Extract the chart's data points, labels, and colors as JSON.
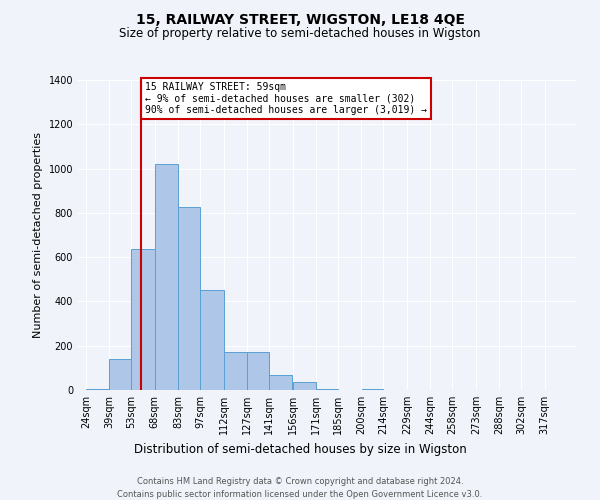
{
  "title": "15, RAILWAY STREET, WIGSTON, LE18 4QE",
  "subtitle": "Size of property relative to semi-detached houses in Wigston",
  "xlabel": "Distribution of semi-detached houses by size in Wigston",
  "ylabel": "Number of semi-detached properties",
  "bin_labels": [
    "24sqm",
    "39sqm",
    "53sqm",
    "68sqm",
    "83sqm",
    "97sqm",
    "112sqm",
    "127sqm",
    "141sqm",
    "156sqm",
    "171sqm",
    "185sqm",
    "200sqm",
    "214sqm",
    "229sqm",
    "244sqm",
    "258sqm",
    "273sqm",
    "288sqm",
    "302sqm",
    "317sqm"
  ],
  "bin_edges": [
    24,
    39,
    53,
    68,
    83,
    97,
    112,
    127,
    141,
    156,
    171,
    185,
    200,
    214,
    229,
    244,
    258,
    273,
    288,
    302,
    317,
    332
  ],
  "bar_values": [
    5,
    140,
    635,
    1020,
    825,
    450,
    170,
    170,
    70,
    35,
    5,
    0,
    5,
    0,
    0,
    0,
    0,
    0,
    0,
    0,
    0
  ],
  "bar_color": "#aec6e8",
  "bar_edge_color": "#5a9fd4",
  "property_size": 59,
  "property_line_color": "#cc0000",
  "annotation_text": "15 RAILWAY STREET: 59sqm\n← 9% of semi-detached houses are smaller (302)\n90% of semi-detached houses are larger (3,019) →",
  "annotation_box_color": "#cc0000",
  "ylim": [
    0,
    1400
  ],
  "yticks": [
    0,
    200,
    400,
    600,
    800,
    1000,
    1200,
    1400
  ],
  "footer_line1": "Contains HM Land Registry data © Crown copyright and database right 2024.",
  "footer_line2": "Contains public sector information licensed under the Open Government Licence v3.0.",
  "bg_color": "#f0f4fa",
  "grid_color": "#ffffff",
  "title_fontsize": 10,
  "subtitle_fontsize": 8.5,
  "xlabel_fontsize": 8.5,
  "ylabel_fontsize": 8,
  "tick_fontsize": 7,
  "footer_fontsize": 6,
  "annotation_fontsize": 7
}
